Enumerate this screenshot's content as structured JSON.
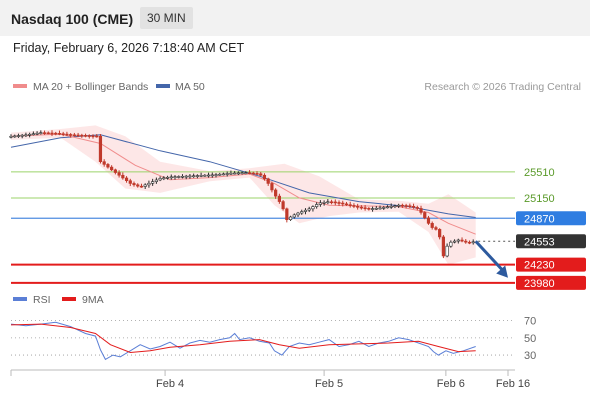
{
  "header": {
    "title": "Nasdaq 100 (CME)",
    "interval": "30 MIN",
    "datetime": "Friday, February 6, 2026 7:18:40 AM CET"
  },
  "credit": "Research © 2026 Trading Central",
  "colors": {
    "candle_up": "#2b2b2b",
    "candle_down": "#c0392b",
    "ma20": "#f08c8c",
    "bollinger_fill": "#fde3e3",
    "ma50": "#4466aa",
    "resistance": "#9bd36a",
    "pivot": "#4f8de0",
    "support": "#e31c1c",
    "last_price": "#333333",
    "rsi": "#5b7fd6",
    "rsi_ma": "#e31c1c",
    "arrow": "#2d5a9e"
  },
  "chart_data": [
    {
      "type": "candlestick",
      "legend": [
        {
          "name": "MA 20 + Bollinger Bands",
          "color": "#f08c8c"
        },
        {
          "name": "MA 50",
          "color": "#4466aa"
        }
      ],
      "ylim": [
        23950,
        26500
      ],
      "x_ticks": [
        {
          "label": "Feb 4",
          "pos": 0.31
        },
        {
          "label": "Feb 5",
          "pos": 0.63
        },
        {
          "label": "Feb 6",
          "pos": 0.875
        },
        {
          "label": "Feb 16",
          "pos": 1.0
        }
      ],
      "levels": [
        {
          "label": "25510",
          "value": 25510,
          "kind": "resistance"
        },
        {
          "label": "25150",
          "value": 25150,
          "kind": "resistance"
        },
        {
          "label": "24870",
          "value": 24870,
          "kind": "pivot"
        },
        {
          "label": "24553",
          "value": 24553,
          "kind": "last"
        },
        {
          "label": "24230",
          "value": 24230,
          "kind": "support"
        },
        {
          "label": "23980",
          "value": 23980,
          "kind": "support"
        }
      ],
      "price_path": [
        [
          0.0,
          26000
        ],
        [
          0.03,
          26020
        ],
        [
          0.06,
          26050
        ],
        [
          0.09,
          26040
        ],
        [
          0.12,
          26020
        ],
        [
          0.15,
          26010
        ],
        [
          0.175,
          26000
        ],
        [
          0.18,
          25650
        ],
        [
          0.2,
          25550
        ],
        [
          0.22,
          25450
        ],
        [
          0.24,
          25350
        ],
        [
          0.26,
          25300
        ],
        [
          0.28,
          25360
        ],
        [
          0.3,
          25420
        ],
        [
          0.32,
          25440
        ],
        [
          0.35,
          25450
        ],
        [
          0.38,
          25460
        ],
        [
          0.41,
          25470
        ],
        [
          0.44,
          25490
        ],
        [
          0.47,
          25500
        ],
        [
          0.5,
          25480
        ],
        [
          0.515,
          25380
        ],
        [
          0.53,
          25200
        ],
        [
          0.545,
          25050
        ],
        [
          0.555,
          24850
        ],
        [
          0.565,
          24900
        ],
        [
          0.58,
          24950
        ],
        [
          0.6,
          25000
        ],
        [
          0.62,
          25080
        ],
        [
          0.64,
          25100
        ],
        [
          0.66,
          25080
        ],
        [
          0.68,
          25050
        ],
        [
          0.7,
          25020
        ],
        [
          0.72,
          25000
        ],
        [
          0.74,
          25010
        ],
        [
          0.76,
          25030
        ],
        [
          0.78,
          25050
        ],
        [
          0.8,
          25040
        ],
        [
          0.82,
          25000
        ],
        [
          0.835,
          24850
        ],
        [
          0.845,
          24750
        ],
        [
          0.86,
          24700
        ],
        [
          0.87,
          24350
        ],
        [
          0.88,
          24530
        ],
        [
          0.9,
          24570
        ],
        [
          0.92,
          24530
        ],
        [
          0.935,
          24553
        ]
      ],
      "ma20": [
        [
          0.0,
          26000
        ],
        [
          0.1,
          26030
        ],
        [
          0.18,
          25900
        ],
        [
          0.25,
          25600
        ],
        [
          0.32,
          25400
        ],
        [
          0.4,
          25430
        ],
        [
          0.48,
          25480
        ],
        [
          0.53,
          25350
        ],
        [
          0.58,
          25150
        ],
        [
          0.64,
          25050
        ],
        [
          0.7,
          25040
        ],
        [
          0.78,
          25030
        ],
        [
          0.84,
          24950
        ],
        [
          0.88,
          24800
        ],
        [
          0.935,
          24650
        ]
      ],
      "bollinger_upper": [
        [
          0.0,
          26050
        ],
        [
          0.1,
          26100
        ],
        [
          0.17,
          26150
        ],
        [
          0.23,
          26000
        ],
        [
          0.3,
          25650
        ],
        [
          0.4,
          25520
        ],
        [
          0.48,
          25560
        ],
        [
          0.55,
          25620
        ],
        [
          0.62,
          25450
        ],
        [
          0.7,
          25130
        ],
        [
          0.78,
          25110
        ],
        [
          0.84,
          25070
        ],
        [
          0.88,
          25200
        ],
        [
          0.935,
          24950
        ]
      ],
      "bollinger_lower": [
        [
          0.0,
          25950
        ],
        [
          0.1,
          25980
        ],
        [
          0.17,
          25650
        ],
        [
          0.23,
          25280
        ],
        [
          0.3,
          25220
        ],
        [
          0.4,
          25380
        ],
        [
          0.48,
          25430
        ],
        [
          0.53,
          25050
        ],
        [
          0.58,
          24800
        ],
        [
          0.64,
          24900
        ],
        [
          0.7,
          24950
        ],
        [
          0.78,
          24960
        ],
        [
          0.84,
          24680
        ],
        [
          0.88,
          24230
        ],
        [
          0.935,
          24330
        ]
      ],
      "ma50": [
        [
          0.0,
          25850
        ],
        [
          0.1,
          25980
        ],
        [
          0.18,
          26020
        ],
        [
          0.3,
          25800
        ],
        [
          0.4,
          25650
        ],
        [
          0.5,
          25450
        ],
        [
          0.6,
          25220
        ],
        [
          0.7,
          25100
        ],
        [
          0.8,
          25030
        ],
        [
          0.88,
          24930
        ],
        [
          0.935,
          24880
        ]
      ],
      "projection": {
        "from": [
          0.935,
          24553
        ],
        "to": [
          1.0,
          24050
        ]
      }
    },
    {
      "type": "line",
      "legend": [
        {
          "name": "RSI",
          "color": "#5b7fd6"
        },
        {
          "name": "9MA",
          "color": "#e31c1c"
        }
      ],
      "ylim": [
        15,
        80
      ],
      "y_ticks": [
        70,
        50,
        30
      ],
      "y_tick_labels": [
        "70",
        "50",
        "30"
      ],
      "series": [
        {
          "name": "RSI",
          "points": [
            [
              0.0,
              66
            ],
            [
              0.03,
              64
            ],
            [
              0.06,
              66
            ],
            [
              0.09,
              68
            ],
            [
              0.12,
              63
            ],
            [
              0.15,
              55
            ],
            [
              0.17,
              52
            ],
            [
              0.18,
              36
            ],
            [
              0.19,
              25
            ],
            [
              0.205,
              30
            ],
            [
              0.22,
              28
            ],
            [
              0.24,
              35
            ],
            [
              0.26,
              42
            ],
            [
              0.28,
              37
            ],
            [
              0.3,
              40
            ],
            [
              0.32,
              45
            ],
            [
              0.34,
              38
            ],
            [
              0.36,
              44
            ],
            [
              0.38,
              47
            ],
            [
              0.4,
              45
            ],
            [
              0.42,
              48
            ],
            [
              0.44,
              50
            ],
            [
              0.45,
              55
            ],
            [
              0.46,
              48
            ],
            [
              0.48,
              50
            ],
            [
              0.5,
              46
            ],
            [
              0.52,
              44
            ],
            [
              0.53,
              35
            ],
            [
              0.545,
              30
            ],
            [
              0.56,
              40
            ],
            [
              0.58,
              44
            ],
            [
              0.6,
              42
            ],
            [
              0.62,
              45
            ],
            [
              0.64,
              48
            ],
            [
              0.66,
              40
            ],
            [
              0.68,
              42
            ],
            [
              0.7,
              46
            ],
            [
              0.72,
              40
            ],
            [
              0.74,
              44
            ],
            [
              0.76,
              46
            ],
            [
              0.78,
              50
            ],
            [
              0.8,
              48
            ],
            [
              0.82,
              44
            ],
            [
              0.84,
              40
            ],
            [
              0.85,
              34
            ],
            [
              0.86,
              30
            ],
            [
              0.875,
              35
            ],
            [
              0.89,
              32
            ],
            [
              0.91,
              35
            ],
            [
              0.935,
              40
            ]
          ]
        },
        {
          "name": "9MA",
          "points": [
            [
              0.0,
              65
            ],
            [
              0.06,
              66
            ],
            [
              0.12,
              62
            ],
            [
              0.17,
              55
            ],
            [
              0.2,
              42
            ],
            [
              0.24,
              33
            ],
            [
              0.28,
              35
            ],
            [
              0.32,
              39
            ],
            [
              0.38,
              42
            ],
            [
              0.44,
              46
            ],
            [
              0.5,
              48
            ],
            [
              0.54,
              42
            ],
            [
              0.58,
              38
            ],
            [
              0.64,
              42
            ],
            [
              0.7,
              43
            ],
            [
              0.76,
              44
            ],
            [
              0.82,
              46
            ],
            [
              0.86,
              40
            ],
            [
              0.9,
              34
            ],
            [
              0.935,
              35
            ]
          ]
        }
      ]
    }
  ]
}
